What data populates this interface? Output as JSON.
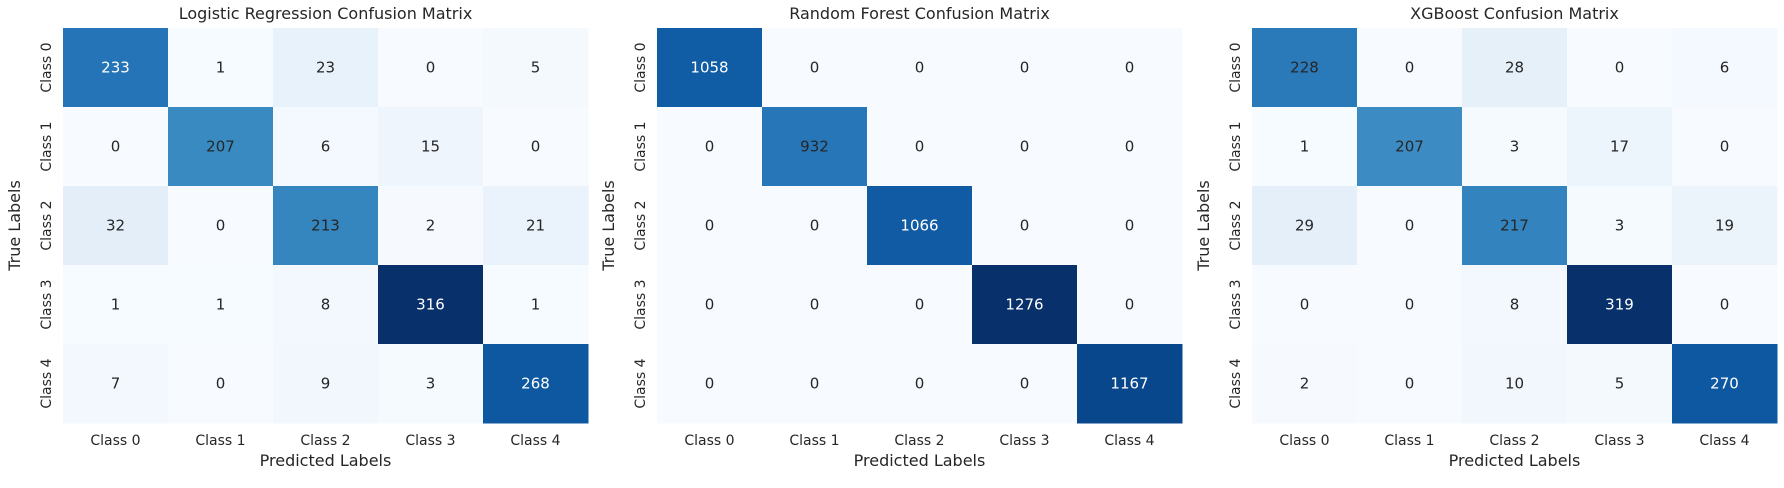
{
  "colormap": "Blues",
  "chart_data": [
    {
      "type": "heatmap",
      "title": "Logistic Regression Confusion Matrix",
      "xlabel": "Predicted Labels",
      "ylabel": "True Labels",
      "x_categories": [
        "Class 0",
        "Class 1",
        "Class 2",
        "Class 3",
        "Class 4"
      ],
      "y_categories": [
        "Class 0",
        "Class 1",
        "Class 2",
        "Class 3",
        "Class 4"
      ],
      "matrix": [
        [
          233,
          1,
          23,
          0,
          5
        ],
        [
          0,
          207,
          6,
          15,
          0
        ],
        [
          32,
          0,
          213,
          2,
          21
        ],
        [
          1,
          1,
          8,
          316,
          1
        ],
        [
          7,
          0,
          9,
          3,
          268
        ]
      ]
    },
    {
      "type": "heatmap",
      "title": "Random Forest Confusion Matrix",
      "xlabel": "Predicted Labels",
      "ylabel": "True Labels",
      "x_categories": [
        "Class 0",
        "Class 1",
        "Class 2",
        "Class 3",
        "Class 4"
      ],
      "y_categories": [
        "Class 0",
        "Class 1",
        "Class 2",
        "Class 3",
        "Class 4"
      ],
      "matrix": [
        [
          1058,
          0,
          0,
          0,
          0
        ],
        [
          0,
          932,
          0,
          0,
          0
        ],
        [
          0,
          0,
          1066,
          0,
          0
        ],
        [
          0,
          0,
          0,
          1276,
          0
        ],
        [
          0,
          0,
          0,
          0,
          1167
        ]
      ]
    },
    {
      "type": "heatmap",
      "title": "XGBoost Confusion Matrix",
      "xlabel": "Predicted Labels",
      "ylabel": "True Labels",
      "x_categories": [
        "Class 0",
        "Class 1",
        "Class 2",
        "Class 3",
        "Class 4"
      ],
      "y_categories": [
        "Class 0",
        "Class 1",
        "Class 2",
        "Class 3",
        "Class 4"
      ],
      "matrix": [
        [
          228,
          0,
          28,
          0,
          6
        ],
        [
          1,
          207,
          3,
          17,
          0
        ],
        [
          29,
          0,
          217,
          3,
          19
        ],
        [
          0,
          0,
          8,
          319,
          0
        ],
        [
          2,
          0,
          10,
          5,
          270
        ]
      ]
    }
  ]
}
